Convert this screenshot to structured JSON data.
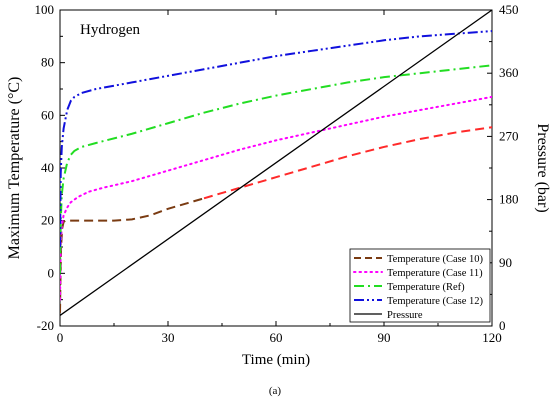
{
  "chart_data": {
    "type": "line",
    "annotation": "Hydrogen",
    "caption": "(a)",
    "xlabel": "Time (min)",
    "ylabel": "Maximum Temperature (°C)",
    "y2label": "Pressure (bar)",
    "xlim": [
      0,
      120
    ],
    "ylim": [
      -20,
      100
    ],
    "y2lim": [
      0,
      450
    ],
    "xticks": [
      "0",
      "30",
      "60",
      "90",
      "120"
    ],
    "yticks": [
      "-20",
      "0",
      "20",
      "40",
      "60",
      "80",
      "100"
    ],
    "y2ticks": [
      "0",
      "90",
      "180",
      "270",
      "360",
      "450"
    ],
    "grid": false,
    "legend_position": "bottom-right",
    "series": [
      {
        "name": "Temperature (Case 10)",
        "axis": "left",
        "style": "dash",
        "colors": [
          "#7a3b12",
          "#ff2a2a"
        ],
        "x": [
          0,
          0.1,
          0.3,
          0.6,
          1,
          1.5,
          3,
          6,
          10,
          15,
          20,
          25,
          30,
          40,
          50,
          60,
          70,
          80,
          90,
          100,
          110,
          120
        ],
        "y": [
          -15,
          -5,
          10,
          17,
          19.5,
          20,
          20,
          20,
          20,
          20,
          20.5,
          22,
          24.5,
          28.5,
          32.5,
          36.5,
          40.5,
          44.5,
          48,
          51,
          53.5,
          55.5
        ]
      },
      {
        "name": "Temperature (Case 11)",
        "axis": "left",
        "style": "dot",
        "color": "#ff00ff",
        "x": [
          0,
          0.2,
          0.5,
          1,
          2,
          3,
          5,
          8,
          12,
          20,
          30,
          40,
          50,
          60,
          70,
          80,
          90,
          100,
          110,
          120
        ],
        "y": [
          -10,
          10,
          18,
          22,
          25,
          27,
          29,
          31,
          32.5,
          35,
          39,
          43,
          47,
          50.5,
          53.5,
          56.5,
          59.5,
          62,
          64.5,
          67
        ]
      },
      {
        "name": "Temperature (Ref)",
        "axis": "left",
        "style": "dashdot",
        "color": "#22dd22",
        "x": [
          0,
          0.2,
          0.5,
          1,
          2,
          3,
          4,
          6,
          10,
          20,
          30,
          40,
          50,
          60,
          70,
          80,
          90,
          100,
          110,
          120
        ],
        "y": [
          0,
          20,
          30,
          36,
          42,
          45,
          46.5,
          48,
          49.5,
          53,
          57,
          61,
          64.5,
          67.5,
          70,
          72.5,
          74.5,
          76,
          77.5,
          79
        ]
      },
      {
        "name": "Temperature (Case 12)",
        "axis": "left",
        "style": "dashdotdot",
        "color": "#1010dd",
        "x": [
          0,
          0.2,
          0.5,
          1,
          2,
          3,
          4,
          6,
          10,
          20,
          30,
          40,
          50,
          60,
          70,
          80,
          90,
          100,
          110,
          120
        ],
        "y": [
          10,
          38,
          48,
          55,
          62,
          65.5,
          67,
          68.5,
          70,
          72.5,
          75,
          77.5,
          80,
          82.5,
          84.5,
          86.5,
          88.5,
          90,
          91,
          92
        ]
      },
      {
        "name": "Pressure",
        "axis": "right",
        "style": "solid",
        "color": "#000000",
        "x": [
          0,
          120
        ],
        "y": [
          15,
          450
        ]
      }
    ]
  }
}
